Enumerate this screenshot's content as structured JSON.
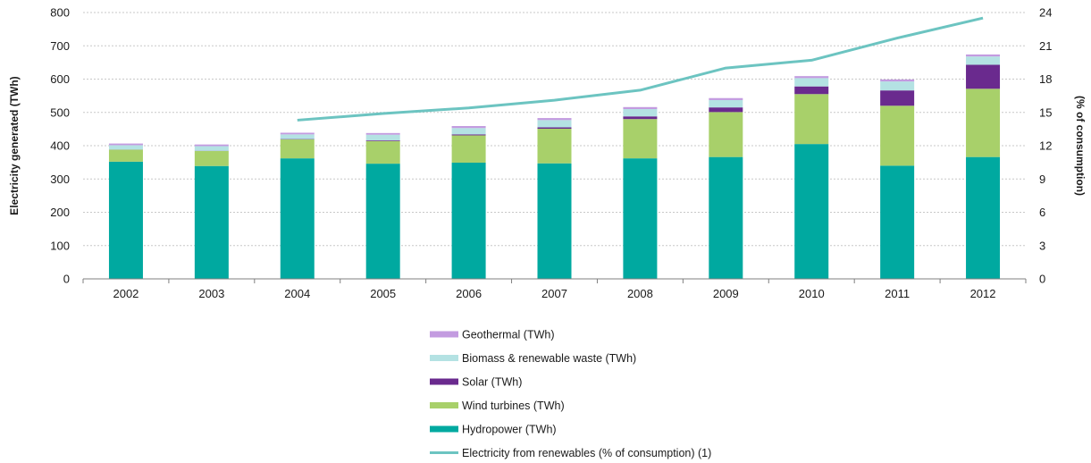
{
  "chart_data": {
    "type": "bar",
    "stacked": true,
    "categories": [
      "2002",
      "2003",
      "2004",
      "2005",
      "2006",
      "2007",
      "2008",
      "2009",
      "2010",
      "2011",
      "2012"
    ],
    "series": [
      {
        "name": "Hydropower (TWh)",
        "color": "#00a9a0",
        "values": [
          352,
          339,
          362,
          346,
          349,
          347,
          362,
          366,
          405,
          340,
          366
        ]
      },
      {
        "name": "Wind turbines (TWh)",
        "color": "#a8d06a",
        "values": [
          36,
          45,
          57,
          68,
          82,
          104,
          118,
          135,
          150,
          180,
          205
        ]
      },
      {
        "name": "Solar (TWh)",
        "color": "#6a2a8e",
        "values": [
          0.5,
          0.6,
          1,
          2,
          3,
          4,
          8,
          14,
          23,
          46,
          72
        ]
      },
      {
        "name": "Biomass & renewable waste (TWh)",
        "color": "#b4e2e3",
        "values": [
          13,
          14,
          14,
          17,
          19,
          22,
          22,
          22,
          25,
          27,
          25
        ]
      },
      {
        "name": "Geothermal (TWh)",
        "color": "#c39be0",
        "values": [
          5,
          5,
          5,
          5,
          6,
          6,
          6,
          6,
          6,
          6,
          6
        ]
      }
    ],
    "line_series": {
      "name": "Electricity from renewables (% of consumption) (1)",
      "color": "#6cc4c1",
      "values": [
        null,
        null,
        14.3,
        14.9,
        15.4,
        16.1,
        17.0,
        19.0,
        19.7,
        21.7,
        23.5
      ]
    },
    "ylabel": "Electricity generated (TWh)",
    "y2label": "(% of consumption)",
    "ylim": [
      0,
      800
    ],
    "y2lim": [
      0,
      24
    ],
    "yticks": [
      "0",
      "100",
      "200",
      "300",
      "400",
      "500",
      "600",
      "700",
      "800"
    ],
    "y2ticks": [
      "0",
      "3",
      "6",
      "9",
      "12",
      "15",
      "18",
      "21",
      "24"
    ],
    "grid": true,
    "legend_position": "bottom-center",
    "legend_order": [
      {
        "label": "Geothermal (TWh)",
        "color": "#c39be0",
        "kind": "bar"
      },
      {
        "label": "Biomass & renewable waste (TWh)",
        "color": "#b4e2e3",
        "kind": "bar"
      },
      {
        "label": "Solar (TWh)",
        "color": "#6a2a8e",
        "kind": "bar"
      },
      {
        "label": "Wind turbines (TWh)",
        "color": "#a8d06a",
        "kind": "bar"
      },
      {
        "label": "Hydropower (TWh)",
        "color": "#00a9a0",
        "kind": "bar"
      },
      {
        "label": "Electricity from renewables (% of consumption) (1)",
        "color": "#6cc4c1",
        "kind": "line"
      }
    ]
  }
}
